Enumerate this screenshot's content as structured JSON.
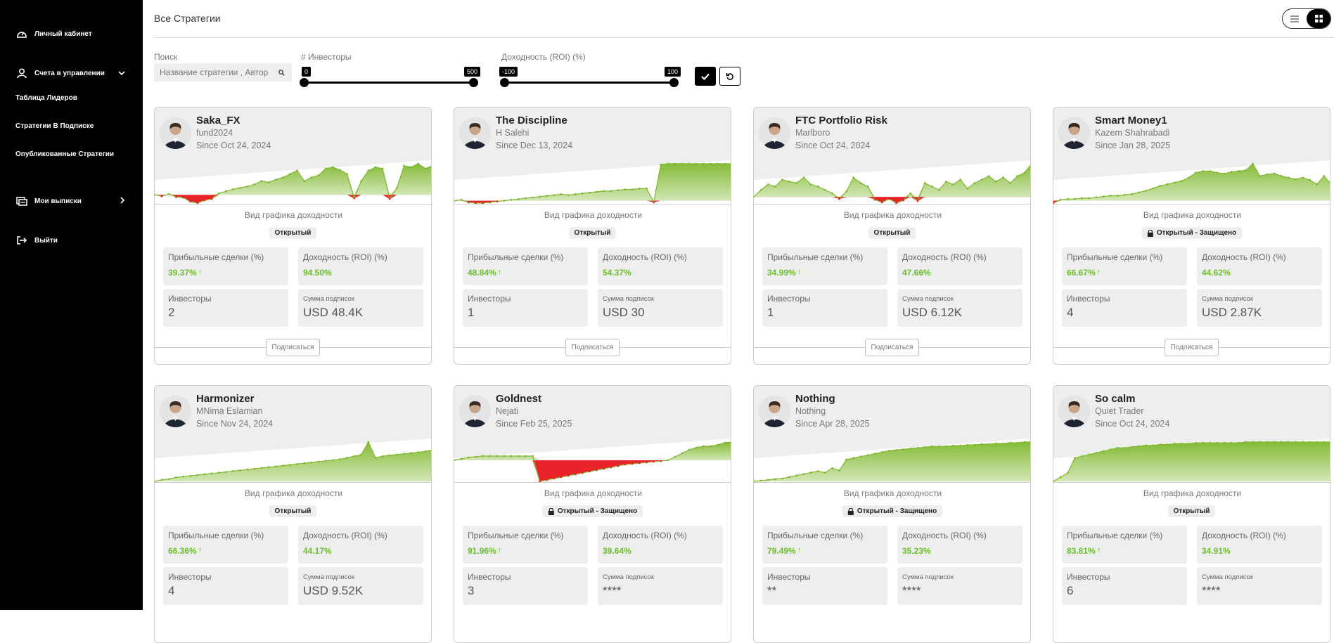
{
  "sidebar": {
    "items": [
      {
        "label": "Личный кабинет",
        "icon": "dashboard-icon"
      },
      {
        "label": "Счета в управлении",
        "icon": "user-icon"
      },
      {
        "label": "Таблица Лидеров"
      },
      {
        "label": "Стратегии В Подписке"
      },
      {
        "label": "Опубликованные Стратегии"
      },
      {
        "label": "Мои выписки",
        "icon": "statements-icon"
      },
      {
        "label": "Выйти",
        "icon": "logout-icon"
      }
    ]
  },
  "header": {
    "title": "Все Стратегии"
  },
  "filters": {
    "search_label": "Поиск",
    "search_placeholder": "Название стратегии , Автор",
    "investors_label": "# Инвесторы",
    "investors_min": "0",
    "investors_max": "500",
    "roi_label": "Доходность (ROI) (%)",
    "roi_min": "-100",
    "roi_max": "100"
  },
  "labels": {
    "chart_title": "Вид графика доходности",
    "profit_trades": "Прибыльные сделки (%)",
    "roi": "Доходность (ROI) (%)",
    "investors": "Инвесторы",
    "subs_sum": "Сумма подписок",
    "subscribe": "Подписаться"
  },
  "cards": [
    {
      "name": "Saka_FX",
      "author": "fund2024",
      "since": "Since Oct 24, 2024",
      "badge": "Открытый",
      "locked": false,
      "profit": "39.37%",
      "roi": "94.50%",
      "investors": "2",
      "subs": "USD 48.4K",
      "subscribe": true,
      "series": [
        0,
        -2,
        1,
        -3,
        -4,
        -10,
        -12,
        -8,
        -6,
        2,
        5,
        8,
        10,
        12,
        15,
        20,
        18,
        22,
        25,
        30,
        35,
        20,
        25,
        28,
        38,
        40,
        36,
        30,
        -5,
        20,
        35,
        40,
        38,
        -6,
        10,
        42,
        40,
        45,
        38,
        42
      ]
    },
    {
      "name": "The Discipline",
      "author": "H Salehi",
      "since": "Since Dec 13, 2024",
      "badge": "Открытый",
      "locked": false,
      "profit": "48.84%",
      "roi": "54.37%",
      "investors": "1",
      "subs": "USD 30",
      "subscribe": true,
      "series": [
        0,
        1,
        -2,
        -3,
        -3,
        -2,
        -1,
        0,
        1,
        2,
        3,
        4,
        5,
        6,
        7,
        8,
        7,
        8,
        9,
        10,
        11,
        12,
        12,
        13,
        14,
        14,
        15,
        15,
        -2,
        45,
        46,
        46,
        46,
        46,
        46,
        46,
        46,
        46,
        46,
        46
      ]
    },
    {
      "name": "FTC Portfolio Risk",
      "author": "Marlboro",
      "since": "Since Oct 24, 2024",
      "badge": "Открытый",
      "locked": false,
      "profit": "34.99%",
      "roi": "47.66%",
      "investors": "1",
      "subs": "USD 6.12K",
      "subscribe": true,
      "series": [
        0,
        10,
        18,
        15,
        25,
        22,
        20,
        28,
        18,
        15,
        10,
        5,
        -3,
        8,
        28,
        20,
        15,
        -4,
        -8,
        -3,
        -9,
        -5,
        5,
        -6,
        20,
        15,
        10,
        22,
        18,
        25,
        12,
        20,
        25,
        30,
        22,
        28,
        20,
        30,
        35,
        48
      ]
    },
    {
      "name": "Smart Money1",
      "author": "Kazem Shahrabadi",
      "since": "Since Jan 28, 2025",
      "badge": "Открытый - Защищено",
      "locked": true,
      "profit": "66.67%",
      "roi": "44.62%",
      "investors": "4",
      "subs": "USD 2.87K",
      "subscribe": true,
      "series": [
        -3,
        1,
        2,
        2,
        3,
        3,
        4,
        5,
        6,
        6,
        7,
        8,
        10,
        12,
        15,
        18,
        20,
        22,
        24,
        28,
        34,
        36,
        36,
        34,
        33,
        35,
        36,
        37,
        45,
        30,
        32,
        33,
        30,
        28,
        26,
        28,
        25,
        20,
        30,
        20
      ]
    },
    {
      "name": "Harmonizer",
      "author": "MNima Eslamian",
      "since": "Since Nov 24, 2024",
      "badge": "Открытый",
      "locked": false,
      "profit": "66.36%",
      "roi": "44.17%",
      "investors": "4",
      "subs": "USD 9.52K",
      "subscribe": false,
      "series": [
        0,
        2,
        3,
        5,
        6,
        7,
        8,
        9,
        10,
        11,
        12,
        13,
        14,
        15,
        16,
        17,
        18,
        19,
        20,
        21,
        22,
        23,
        24,
        25,
        26,
        27,
        28,
        30,
        32,
        34,
        50,
        30,
        32,
        33,
        34,
        35,
        36,
        37,
        38,
        40
      ]
    },
    {
      "name": "Goldnest",
      "author": "Nejati",
      "since": "Since Feb 25, 2025",
      "badge": "Открытый - Защищено",
      "locked": true,
      "profit": "91.96%",
      "roi": "39.64%",
      "investors": "3",
      "subs": "****",
      "subscribe": false,
      "series": [
        0,
        2,
        4,
        5,
        6,
        6,
        6,
        6,
        6,
        6,
        6,
        6,
        -30,
        -28,
        -26,
        -24,
        -22,
        -20,
        -18,
        -16,
        -14,
        -12,
        -10,
        -8,
        -6,
        -5,
        -4,
        -3,
        -2,
        -1,
        0,
        5,
        10,
        15,
        18,
        20,
        20,
        22,
        25,
        26
      ]
    },
    {
      "name": "Nothing",
      "author": "Nothing",
      "since": "Since Apr 28, 2025",
      "badge": "Открытый - Защищено",
      "locked": true,
      "profit": "79.49%",
      "roi": "35.23%",
      "investors": "**",
      "subs": "****",
      "subscribe": false,
      "series": [
        0,
        1,
        2,
        3,
        4,
        6,
        8,
        10,
        12,
        14,
        12,
        18,
        15,
        30,
        32,
        34,
        36,
        38,
        40,
        42,
        43,
        44,
        45,
        46,
        47,
        48,
        48,
        48,
        49,
        49,
        50,
        50,
        51,
        51,
        52,
        52,
        53,
        53,
        54,
        54
      ]
    },
    {
      "name": "So calm",
      "author": "Quiet Trader",
      "since": "Since Oct 24, 2024",
      "badge": "Открытый",
      "locked": false,
      "profit": "83.81%",
      "roi": "34.91%",
      "investors": "6",
      "subs": "****",
      "subscribe": false,
      "series": [
        0,
        5,
        10,
        28,
        30,
        32,
        34,
        36,
        38,
        40,
        40,
        41,
        42,
        43,
        43,
        44,
        44,
        45,
        45,
        45,
        46,
        46,
        46,
        46,
        46,
        46,
        46,
        47,
        47,
        47,
        47,
        47,
        47,
        47,
        47,
        47,
        47,
        47,
        47,
        47
      ]
    }
  ],
  "colors": {
    "positive": "#7fb82e",
    "negative": "#e8232a",
    "accent": "#000000"
  }
}
